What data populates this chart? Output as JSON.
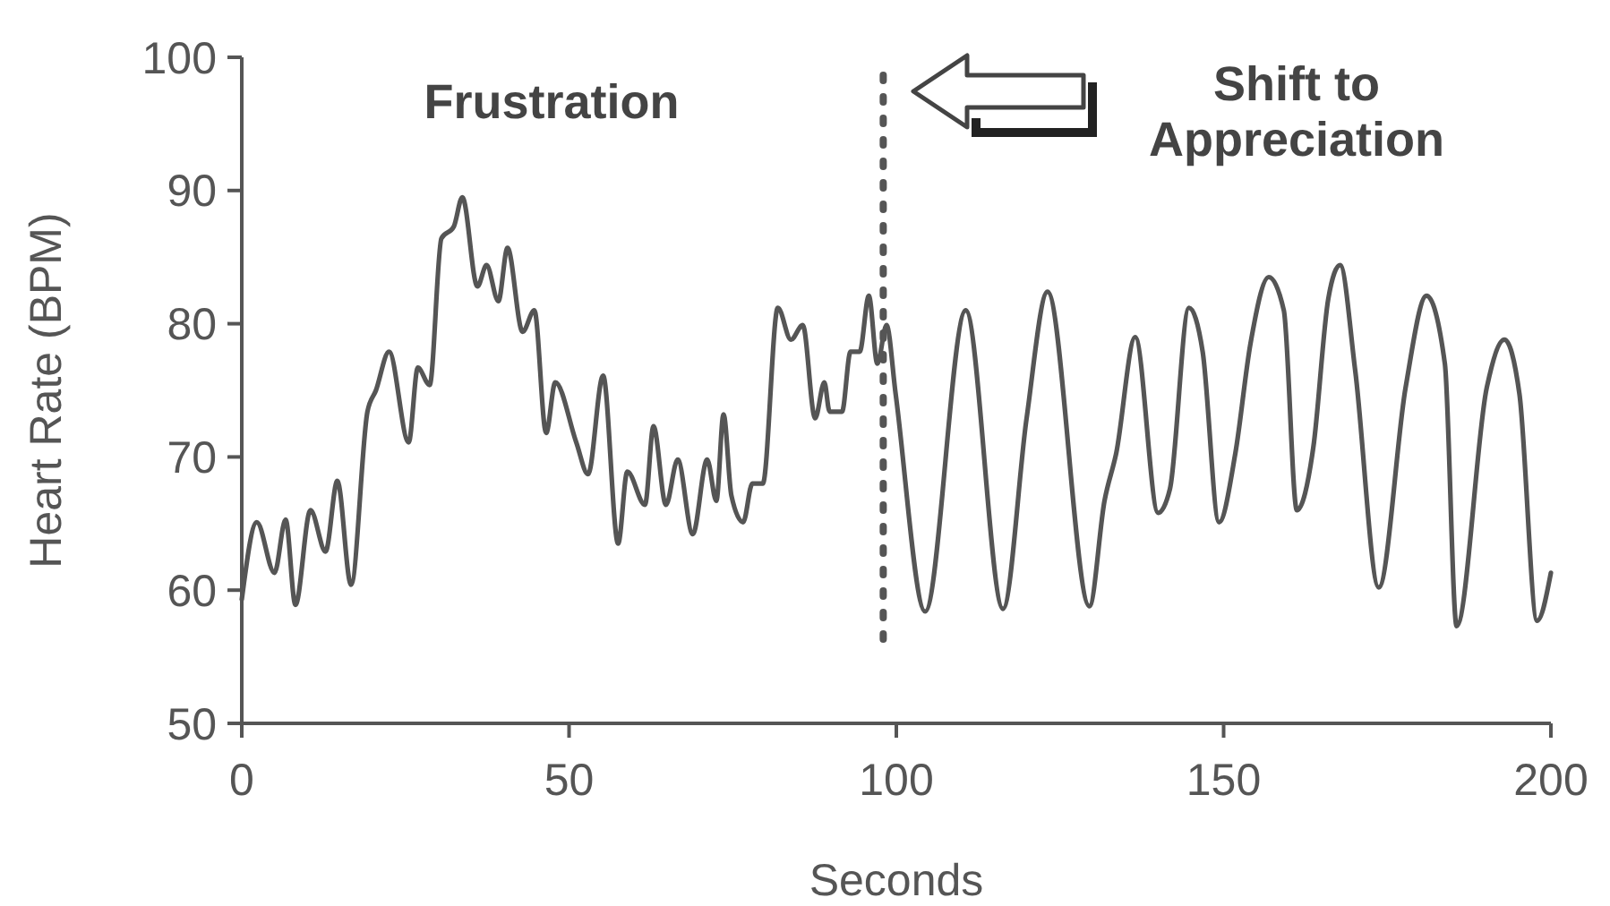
{
  "chart_data": {
    "type": "line",
    "xlabel": "Seconds",
    "ylabel": "Heart Rate (BPM)",
    "xlim": [
      0,
      200
    ],
    "xticks": [
      0,
      50,
      100,
      150,
      200
    ],
    "ylim": [
      50,
      100
    ],
    "yticks": [
      50,
      60,
      70,
      80,
      90,
      100
    ],
    "grid": false,
    "line_style": "solid",
    "annotations": [
      "Frustration",
      "Shift to Appreciation"
    ],
    "ref_lines": [
      {
        "axis": "x",
        "value": 98,
        "line_style": "dotted",
        "color": "#555555"
      }
    ],
    "series": [
      {
        "color": "#555555",
        "x": [
          0,
          2.3,
          5,
          6.7,
          8.2,
          10.5,
          12.8,
          14.6,
          16.7,
          19.2,
          20.5,
          22.5,
          25.5,
          26.9,
          28.7,
          30.5,
          32.4,
          33.7,
          36,
          37.4,
          39.2,
          40.6,
          42.9,
          44.7,
          46.5,
          47.9,
          51.1,
          52.9,
          55.2,
          57.5,
          58.9,
          61.6,
          62.9,
          64.8,
          66.6,
          68.9,
          71.1,
          72.5,
          73.6,
          74.8,
          76.6,
          78,
          79.6,
          81.9,
          83.9,
          85.7,
          87.6,
          89,
          89.8,
          91.7,
          93,
          94.4,
          95.8,
          97.1,
          98.5,
          99.9,
          104.4,
          110.6,
          116.3,
          119.9,
          123.1,
          129.5,
          131.8,
          133.6,
          136.5,
          140,
          141.8,
          144.7,
          146.8,
          149.3,
          151.8,
          154.1,
          156.9,
          159.2,
          161.2,
          163.7,
          166,
          167.8,
          170.1,
          173.7,
          177.8,
          181,
          183.8,
          185.6,
          190.2,
          192.9,
          195.2,
          197.9,
          200
        ],
        "values": [
          59.3,
          65.1,
          61.3,
          65.3,
          58.9,
          66,
          62.9,
          68.2,
          60.4,
          73.4,
          75,
          77.9,
          71.1,
          76.7,
          75.4,
          86.4,
          87.3,
          89.5,
          82.8,
          84.4,
          81.7,
          85.7,
          79.4,
          81,
          71.8,
          75.6,
          71.1,
          68.7,
          76.1,
          63.5,
          68.9,
          66.4,
          72.3,
          66.4,
          69.8,
          64.2,
          69.8,
          66.7,
          73.2,
          67.1,
          65.1,
          68,
          68,
          81.2,
          78.8,
          79.9,
          72.9,
          75.6,
          73.4,
          73.4,
          77.9,
          77.9,
          82.1,
          77,
          79.9,
          74.7,
          58.4,
          81,
          58.6,
          72.9,
          82.4,
          58.8,
          66.7,
          70.3,
          79,
          65.8,
          67.6,
          81.2,
          77.9,
          65.1,
          70.3,
          78.5,
          83.5,
          81,
          66,
          70.7,
          81.9,
          84.4,
          76.5,
          60.2,
          75.2,
          82.1,
          77,
          57.3,
          75.2,
          78.8,
          74.7,
          57.7,
          61.3
        ]
      }
    ]
  }
}
